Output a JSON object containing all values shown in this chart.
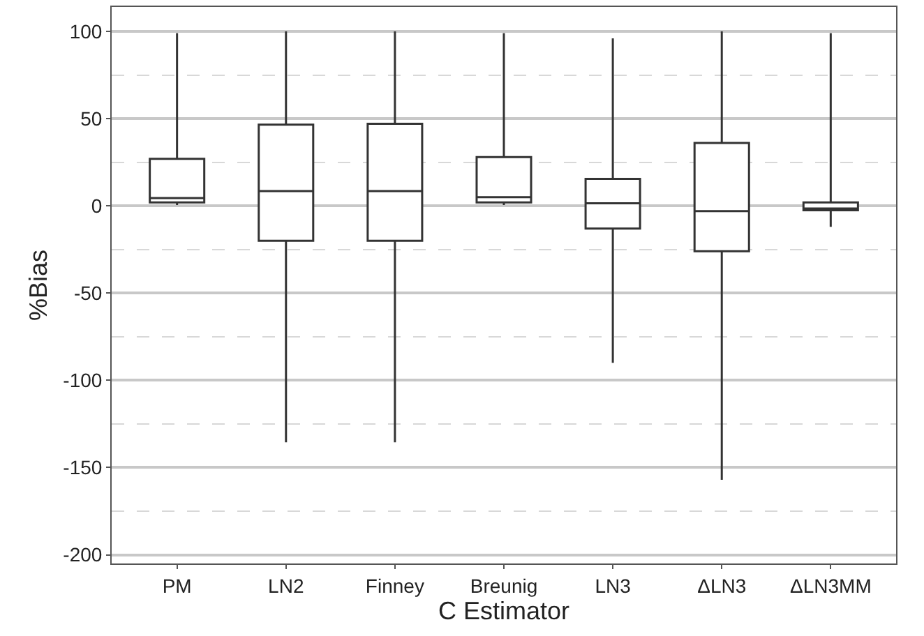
{
  "chart_data": {
    "type": "box",
    "xlabel": "C Estimator",
    "ylabel": "%Bias",
    "categories": [
      "PM",
      "LN2",
      "Finney",
      "Breunig",
      "LN3",
      "ΔLN3",
      "ΔLN3MM"
    ],
    "color": "#333333",
    "boxes": [
      {
        "low": 0.5,
        "q1": 2,
        "median": 4.5,
        "q3": 27,
        "high": 99
      },
      {
        "low": -135.5,
        "q1": -20,
        "median": 8.5,
        "q3": 46.5,
        "high": 100
      },
      {
        "low": -135.5,
        "q1": -20,
        "median": 8.5,
        "q3": 47,
        "high": 100
      },
      {
        "low": 0.5,
        "q1": 2,
        "median": 5,
        "q3": 28,
        "high": 99
      },
      {
        "low": -90,
        "q1": -13,
        "median": 1.5,
        "q3": 15.5,
        "high": 96
      },
      {
        "low": -157,
        "q1": -26,
        "median": -3,
        "q3": 36,
        "high": 100
      },
      {
        "low": -12,
        "q1": -2.5,
        "median": -1.5,
        "q3": 2,
        "high": 99
      }
    ],
    "ylim": [
      -205,
      114
    ],
    "yticks": [
      -200,
      -150,
      -100,
      -50,
      0,
      50,
      100
    ],
    "grid": "y"
  }
}
